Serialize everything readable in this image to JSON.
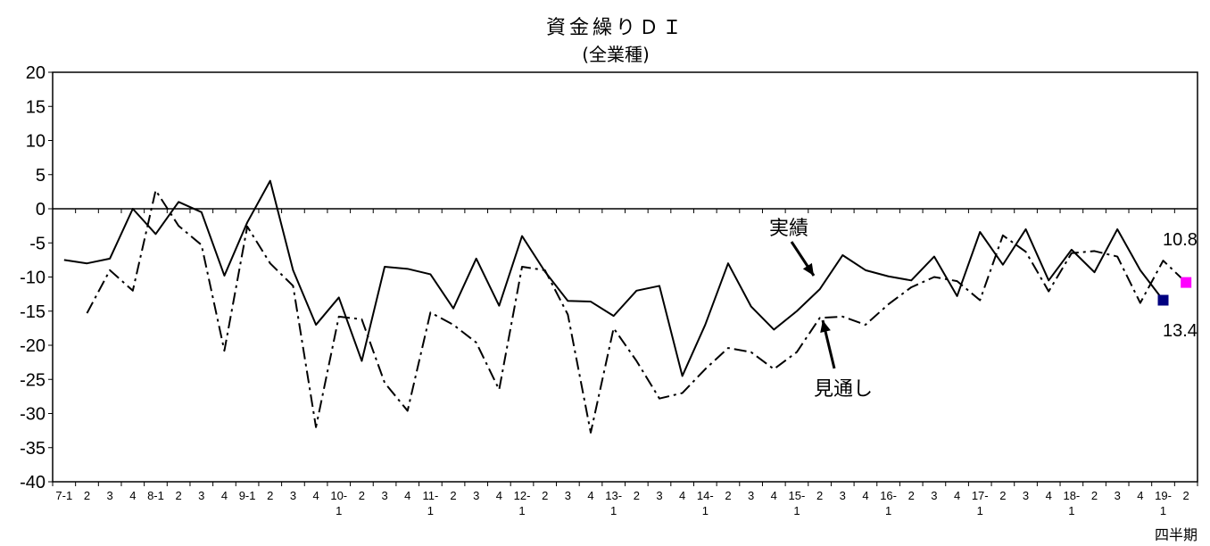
{
  "chart_data": {
    "type": "line",
    "title": "資金繰りＤＩ",
    "subtitle": "(全業種)",
    "xlabel": "四半期",
    "ylabel": "",
    "ylim": [
      -40,
      20
    ],
    "yticks": [
      20,
      15,
      10,
      5,
      0,
      -5,
      -10,
      -15,
      -20,
      -25,
      -30,
      -35,
      -40
    ],
    "x_tick_labels": [
      [
        "7-1",
        ""
      ],
      [
        "2",
        ""
      ],
      [
        "3",
        ""
      ],
      [
        "4",
        ""
      ],
      [
        "8-1",
        ""
      ],
      [
        "2",
        ""
      ],
      [
        "3",
        ""
      ],
      [
        "4",
        ""
      ],
      [
        "9-1",
        ""
      ],
      [
        "2",
        ""
      ],
      [
        "3",
        ""
      ],
      [
        "4",
        ""
      ],
      [
        "10-",
        "1"
      ],
      [
        "2",
        ""
      ],
      [
        "3",
        ""
      ],
      [
        "4",
        ""
      ],
      [
        "11-",
        "1"
      ],
      [
        "2",
        ""
      ],
      [
        "3",
        ""
      ],
      [
        "4",
        ""
      ],
      [
        "12-",
        "1"
      ],
      [
        "2",
        ""
      ],
      [
        "3",
        ""
      ],
      [
        "4",
        ""
      ],
      [
        "13-",
        "1"
      ],
      [
        "2",
        ""
      ],
      [
        "3",
        ""
      ],
      [
        "4",
        ""
      ],
      [
        "14-",
        "1"
      ],
      [
        "2",
        ""
      ],
      [
        "3",
        ""
      ],
      [
        "4",
        ""
      ],
      [
        "15-",
        "1"
      ],
      [
        "2",
        ""
      ],
      [
        "3",
        ""
      ],
      [
        "4",
        ""
      ],
      [
        "16-",
        "1"
      ],
      [
        "2",
        ""
      ],
      [
        "3",
        ""
      ],
      [
        "4",
        ""
      ],
      [
        "17-",
        "1"
      ],
      [
        "2",
        ""
      ],
      [
        "3",
        ""
      ],
      [
        "4",
        ""
      ],
      [
        "18-",
        "1"
      ],
      [
        "2",
        ""
      ],
      [
        "3",
        ""
      ],
      [
        "4",
        ""
      ],
      [
        "19-",
        "1"
      ],
      [
        "2",
        ""
      ]
    ],
    "series": [
      {
        "name": "実績",
        "style": "solid",
        "values": [
          -7.5,
          -8.0,
          -7.3,
          0.0,
          -3.7,
          1.0,
          -0.5,
          -9.8,
          -2.0,
          4.1,
          -9.0,
          -17.0,
          -13.0,
          -22.3,
          -8.5,
          -8.8,
          -9.6,
          -14.6,
          -7.3,
          -14.2,
          -4.0,
          -9.2,
          -13.5,
          -13.6,
          -15.7,
          -12.0,
          -11.3,
          -24.5,
          -17.0,
          -8.0,
          -14.3,
          -17.7,
          -15.0,
          -11.8,
          -6.8,
          -9.0,
          -9.9,
          -10.5,
          -7.0,
          -12.8,
          -3.4,
          -8.2,
          -3.0,
          -10.5,
          -6.0,
          -9.3,
          -3.0,
          -9.0,
          -13.4,
          null
        ]
      },
      {
        "name": "見通し",
        "style": "dash-dot",
        "values": [
          null,
          -15.3,
          -9.0,
          -12.0,
          2.7,
          -2.5,
          -5.3,
          -20.8,
          -2.6,
          -8.0,
          -11.3,
          -32.0,
          -15.8,
          -16.2,
          -25.5,
          -29.6,
          -15.2,
          -17.0,
          -19.6,
          -26.5,
          -8.5,
          -9.0,
          -15.5,
          -32.8,
          -17.5,
          -22.3,
          -27.8,
          -27.0,
          -23.5,
          -20.4,
          -21.0,
          -23.5,
          -21.0,
          -16.0,
          -15.8,
          -17.0,
          -14.0,
          -11.5,
          -10.0,
          -10.6,
          -13.4,
          -3.9,
          -6.3,
          -12.1,
          -6.5,
          -6.2,
          -7.0,
          -13.8,
          -7.6,
          -10.8
        ]
      }
    ],
    "annotations": {
      "actual_label": "実績",
      "forecast_label": "見通し",
      "last_actual_value": "13.4",
      "last_forecast_value": "10.8"
    },
    "marker_colors": {
      "actual": "#000080",
      "forecast": "#ff00ff"
    },
    "grid": false,
    "legend": "none"
  }
}
